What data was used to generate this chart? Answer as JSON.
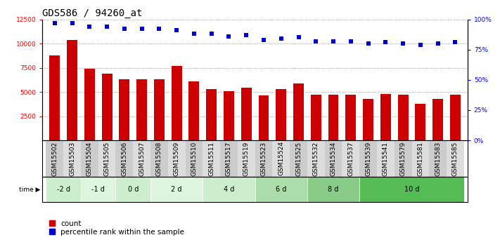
{
  "title": "GDS586 / 94260_at",
  "samples": [
    "GSM15502",
    "GSM15503",
    "GSM15504",
    "GSM15505",
    "GSM15506",
    "GSM15507",
    "GSM15508",
    "GSM15509",
    "GSM15510",
    "GSM15511",
    "GSM15517",
    "GSM15519",
    "GSM15523",
    "GSM15524",
    "GSM15525",
    "GSM15532",
    "GSM15534",
    "GSM15537",
    "GSM15539",
    "GSM15541",
    "GSM15579",
    "GSM15581",
    "GSM15583",
    "GSM15585"
  ],
  "counts": [
    8800,
    10400,
    7400,
    6900,
    6300,
    6300,
    6300,
    7700,
    6100,
    5300,
    5050,
    5450,
    4650,
    5300,
    5850,
    4750,
    4700,
    4750,
    4300,
    4800,
    4700,
    3800,
    4300,
    4700
  ],
  "percentiles": [
    97,
    97,
    94,
    94,
    92,
    92,
    92,
    91,
    88,
    88,
    86,
    87,
    83,
    84,
    85,
    82,
    82,
    82,
    80,
    81,
    80,
    79,
    80,
    81
  ],
  "bar_color": "#cc0000",
  "dot_color": "#0000cc",
  "ylim_left": [
    0,
    12500
  ],
  "ylim_right": [
    0,
    100
  ],
  "yticks_left": [
    2500,
    5000,
    7500,
    10000,
    12500
  ],
  "yticks_right": [
    0,
    25,
    50,
    75,
    100
  ],
  "time_groups": [
    {
      "label": "-2 d",
      "start": 0,
      "end": 2,
      "color": "#cceecc"
    },
    {
      "label": "-1 d",
      "start": 2,
      "end": 4,
      "color": "#ddf5dd"
    },
    {
      "label": "0 d",
      "start": 4,
      "end": 6,
      "color": "#cceecc"
    },
    {
      "label": "2 d",
      "start": 6,
      "end": 9,
      "color": "#ddf5dd"
    },
    {
      "label": "4 d",
      "start": 9,
      "end": 12,
      "color": "#cceecc"
    },
    {
      "label": "6 d",
      "start": 12,
      "end": 15,
      "color": "#aaddaa"
    },
    {
      "label": "8 d",
      "start": 15,
      "end": 18,
      "color": "#88cc88"
    },
    {
      "label": "10 d",
      "start": 18,
      "end": 24,
      "color": "#55bb55"
    }
  ],
  "col_colors": [
    "#cccccc",
    "#dddddd"
  ],
  "bg_color": "#ffffff",
  "grid_color": "#888888",
  "title_fontsize": 10,
  "tick_fontsize": 6.5,
  "label_fontsize": 7.5
}
